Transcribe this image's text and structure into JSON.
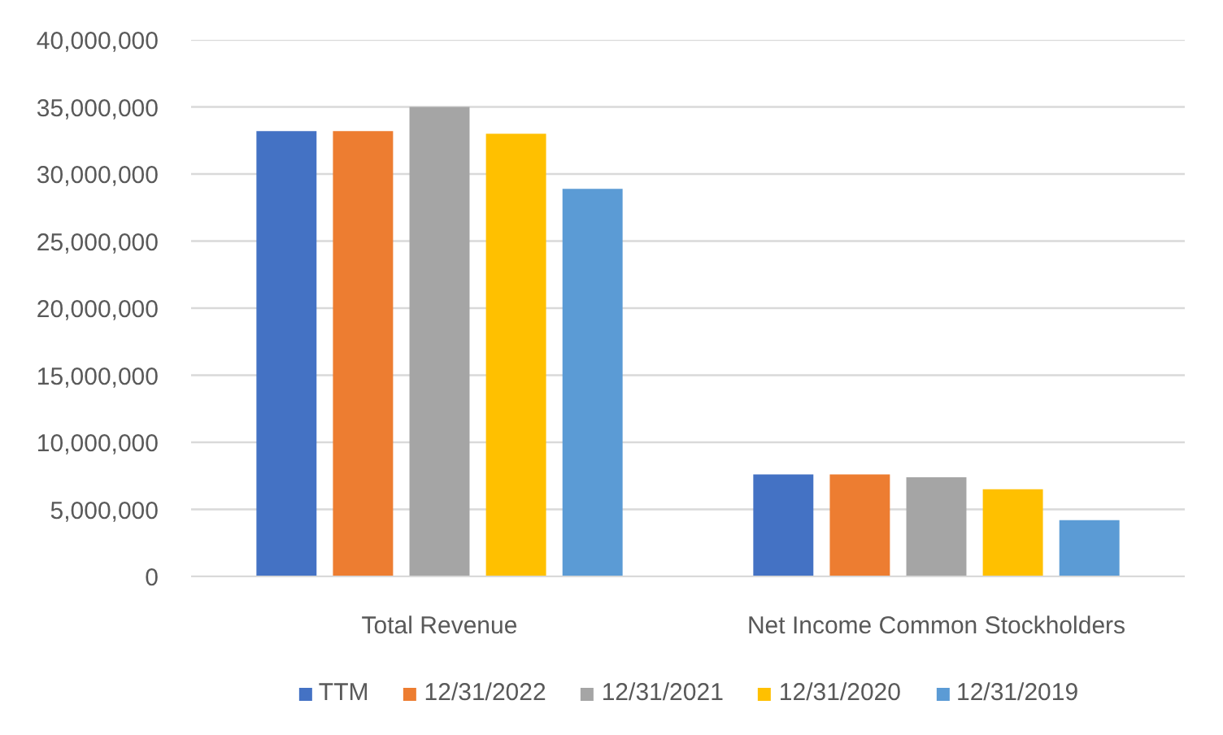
{
  "chart_data": {
    "type": "bar",
    "categories": [
      "Total Revenue",
      "Net Income Common Stockholders"
    ],
    "series": [
      {
        "name": "TTM",
        "color": "#4472c4",
        "values": [
          33200000,
          7600000
        ]
      },
      {
        "name": "12/31/2022",
        "color": "#ed7d31",
        "values": [
          33200000,
          7600000
        ]
      },
      {
        "name": "12/31/2021",
        "color": "#a5a5a5",
        "values": [
          35000000,
          7400000
        ]
      },
      {
        "name": "12/31/2020",
        "color": "#ffc000",
        "values": [
          33000000,
          6500000
        ]
      },
      {
        "name": "12/31/2019",
        "color": "#5b9bd5",
        "values": [
          28900000,
          4200000
        ]
      }
    ],
    "ylim": [
      0,
      40000000
    ],
    "yticks": [
      {
        "value": 0,
        "label": "0"
      },
      {
        "value": 5000000,
        "label": "5,000,000"
      },
      {
        "value": 10000000,
        "label": "10,000,000"
      },
      {
        "value": 15000000,
        "label": "15,000,000"
      },
      {
        "value": 20000000,
        "label": "20,000,000"
      },
      {
        "value": 25000000,
        "label": "25,000,000"
      },
      {
        "value": 30000000,
        "label": "30,000,000"
      },
      {
        "value": 35000000,
        "label": "35,000,000"
      },
      {
        "value": 40000000,
        "label": "40,000,000"
      }
    ],
    "grid": "y",
    "legend": "bottom"
  }
}
